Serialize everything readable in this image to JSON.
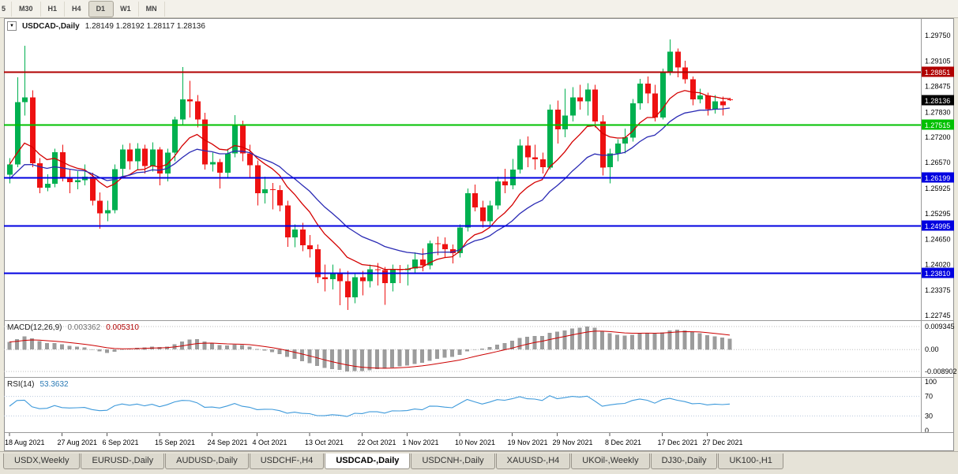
{
  "toolbar": {
    "timeframes": [
      "5",
      "M30",
      "H1",
      "H4",
      "D1",
      "W1",
      "MN"
    ],
    "active_timeframe": "D1"
  },
  "chart": {
    "collapse_icon": "▼",
    "title": "USDCAD-,Daily",
    "ohlc_display": "1.28149 1.28192 1.28117 1.28136"
  },
  "indicators": {
    "macd": {
      "title": "MACD(12,26,9)",
      "main_value": "0.003362",
      "signal_value": "0.005310",
      "axis_labels": [
        {
          "text": "0.009345",
          "value": 0.009345
        },
        {
          "text": "0.00",
          "value": 0
        },
        {
          "text": "-0.008902",
          "value": -0.008902
        }
      ]
    },
    "rsi": {
      "title": "RSI(14)",
      "value": "53.3632",
      "levels": [
        70,
        30
      ],
      "axis_labels": [
        {
          "text": "100",
          "value": 100
        },
        {
          "text": "70",
          "value": 70
        },
        {
          "text": "30",
          "value": 30
        },
        {
          "text": "0",
          "value": 0
        }
      ]
    }
  },
  "chart_data": {
    "type": "candlestick",
    "symbol": "USDCAD-",
    "timeframe": "Daily",
    "colors": {
      "up": "#00b050",
      "down": "#ee1111",
      "macd_hist": "#9c9c9c",
      "macd_signal": "#cc0000",
      "rsi": "#3e9adb"
    },
    "moving_averages": [
      {
        "period": 10,
        "method": "ema",
        "color": "#d40000",
        "seed_offset": 0
      },
      {
        "period": 20,
        "method": "ema",
        "color": "#2a2ab4",
        "seed_offset": 0.004
      }
    ],
    "hlines": [
      {
        "value": 1.28851,
        "label": "1.28851",
        "color": "#b00000"
      },
      {
        "value": 1.27515,
        "label": "1.27515",
        "color": "#00c000"
      },
      {
        "value": 1.26199,
        "label": "1.26199",
        "color": "#0000e0"
      },
      {
        "value": 1.24995,
        "label": "1.24995",
        "color": "#0000e0"
      },
      {
        "value": 1.2381,
        "label": "1.23810",
        "color": "#0000e0"
      }
    ],
    "current_price": {
      "value": 1.28136,
      "label": "1.28136",
      "bg": "#000000"
    },
    "price_axis_labels": [
      "1.29750",
      "1.29105",
      "1.28475",
      "1.27830",
      "1.27200",
      "1.26570",
      "1.25925",
      "1.25295",
      "1.24650",
      "1.24020",
      "1.23375",
      "1.22745"
    ],
    "x_labels": [
      [
        0,
        "18 Aug 2021"
      ],
      [
        7,
        "27 Aug 2021"
      ],
      [
        13,
        "6 Sep 2021"
      ],
      [
        20,
        "15 Sep 2021"
      ],
      [
        27,
        "24 Sep 2021"
      ],
      [
        33,
        "4 Oct 2021"
      ],
      [
        40,
        "13 Oct 2021"
      ],
      [
        47,
        "22 Oct 2021"
      ],
      [
        53,
        "1 Nov 2021"
      ],
      [
        60,
        "10 Nov 2021"
      ],
      [
        67,
        "19 Nov 2021"
      ],
      [
        73,
        "29 Nov 2021"
      ],
      [
        80,
        "8 Dec 2021"
      ],
      [
        87,
        "17 Dec 2021"
      ],
      [
        93,
        "27 Dec 2021"
      ]
    ],
    "candles": [
      [
        1.2627,
        1.2668,
        1.2605,
        1.2652
      ],
      [
        1.2652,
        1.287,
        1.2645,
        1.2808
      ],
      [
        1.2808,
        1.2949,
        1.2775,
        1.282
      ],
      [
        1.282,
        1.2838,
        1.2645,
        1.2655
      ],
      [
        1.2655,
        1.2668,
        1.258,
        1.2594
      ],
      [
        1.2594,
        1.2628,
        1.2585,
        1.2604
      ],
      [
        1.2604,
        1.2692,
        1.2595,
        1.2683
      ],
      [
        1.2683,
        1.2702,
        1.261,
        1.262
      ],
      [
        1.262,
        1.2642,
        1.258,
        1.2608
      ],
      [
        1.2608,
        1.2636,
        1.259,
        1.2613
      ],
      [
        1.2613,
        1.2652,
        1.26,
        1.2622
      ],
      [
        1.2622,
        1.2632,
        1.255,
        1.2562
      ],
      [
        1.2562,
        1.2582,
        1.2492,
        1.253
      ],
      [
        1.253,
        1.2562,
        1.251,
        1.2538
      ],
      [
        1.2538,
        1.2652,
        1.253,
        1.2641
      ],
      [
        1.2641,
        1.2702,
        1.262,
        1.269
      ],
      [
        1.269,
        1.2706,
        1.264,
        1.266
      ],
      [
        1.266,
        1.2706,
        1.264,
        1.2692
      ],
      [
        1.2692,
        1.2702,
        1.263,
        1.2648
      ],
      [
        1.2648,
        1.2708,
        1.2635,
        1.269
      ],
      [
        1.269,
        1.2696,
        1.26,
        1.263
      ],
      [
        1.263,
        1.2692,
        1.261,
        1.2682
      ],
      [
        1.2682,
        1.2772,
        1.266,
        1.2765
      ],
      [
        1.2765,
        1.2896,
        1.275,
        1.2815
      ],
      [
        1.2815,
        1.2862,
        1.277,
        1.281
      ],
      [
        1.281,
        1.2826,
        1.2745,
        1.2765
      ],
      [
        1.2765,
        1.2782,
        1.264,
        1.2652
      ],
      [
        1.2652,
        1.2682,
        1.2635,
        1.2658
      ],
      [
        1.2658,
        1.2666,
        1.2592,
        1.2632
      ],
      [
        1.2632,
        1.2692,
        1.262,
        1.268
      ],
      [
        1.268,
        1.2776,
        1.267,
        1.275
      ],
      [
        1.275,
        1.2762,
        1.266,
        1.268
      ],
      [
        1.268,
        1.2702,
        1.262,
        1.265
      ],
      [
        1.265,
        1.2662,
        1.255,
        1.258
      ],
      [
        1.258,
        1.2622,
        1.2555,
        1.259
      ],
      [
        1.259,
        1.2606,
        1.254,
        1.2588
      ],
      [
        1.2588,
        1.26,
        1.2535,
        1.255
      ],
      [
        1.255,
        1.2562,
        1.2446,
        1.247
      ],
      [
        1.247,
        1.2502,
        1.2445,
        1.249
      ],
      [
        1.249,
        1.2506,
        1.2435,
        1.245
      ],
      [
        1.245,
        1.2476,
        1.242,
        1.244
      ],
      [
        1.244,
        1.2452,
        1.2355,
        1.237
      ],
      [
        1.237,
        1.2402,
        1.2335,
        1.2365
      ],
      [
        1.2365,
        1.2402,
        1.234,
        1.2382
      ],
      [
        1.2382,
        1.2392,
        1.23,
        1.236
      ],
      [
        1.236,
        1.2386,
        1.2288,
        1.232
      ],
      [
        1.232,
        1.2382,
        1.2305,
        1.237
      ],
      [
        1.237,
        1.2386,
        1.2325,
        1.236
      ],
      [
        1.236,
        1.2402,
        1.2345,
        1.239
      ],
      [
        1.239,
        1.2406,
        1.235,
        1.2388
      ],
      [
        1.2388,
        1.2396,
        1.2301,
        1.2355
      ],
      [
        1.2355,
        1.2402,
        1.2335,
        1.239
      ],
      [
        1.239,
        1.2401,
        1.2355,
        1.2388
      ],
      [
        1.2388,
        1.2402,
        1.235,
        1.2392
      ],
      [
        1.2392,
        1.2432,
        1.238,
        1.2415
      ],
      [
        1.2415,
        1.2442,
        1.2385,
        1.24
      ],
      [
        1.24,
        1.2462,
        1.239,
        1.2455
      ],
      [
        1.2455,
        1.2472,
        1.2425,
        1.2453
      ],
      [
        1.2453,
        1.247,
        1.242,
        1.244
      ],
      [
        1.244,
        1.2452,
        1.2405,
        1.243
      ],
      [
        1.243,
        1.2502,
        1.242,
        1.2495
      ],
      [
        1.2495,
        1.2592,
        1.2485,
        1.258
      ],
      [
        1.258,
        1.2602,
        1.2535,
        1.2545
      ],
      [
        1.2545,
        1.2562,
        1.2495,
        1.251
      ],
      [
        1.251,
        1.2562,
        1.25,
        1.255
      ],
      [
        1.255,
        1.2622,
        1.254,
        1.261
      ],
      [
        1.261,
        1.2642,
        1.258,
        1.26
      ],
      [
        1.26,
        1.2666,
        1.259,
        1.264
      ],
      [
        1.264,
        1.2716,
        1.263,
        1.27
      ],
      [
        1.27,
        1.2722,
        1.2645,
        1.267
      ],
      [
        1.267,
        1.2702,
        1.264,
        1.2665
      ],
      [
        1.2665,
        1.2682,
        1.263,
        1.2645
      ],
      [
        1.2645,
        1.2802,
        1.264,
        1.279
      ],
      [
        1.279,
        1.2812,
        1.2705,
        1.274
      ],
      [
        1.274,
        1.2842,
        1.272,
        1.2775
      ],
      [
        1.2775,
        1.2846,
        1.276,
        1.282
      ],
      [
        1.282,
        1.2852,
        1.279,
        1.281
      ],
      [
        1.281,
        1.2856,
        1.2775,
        1.284
      ],
      [
        1.284,
        1.2852,
        1.2745,
        1.276
      ],
      [
        1.276,
        1.2776,
        1.2625,
        1.2645
      ],
      [
        1.2645,
        1.2692,
        1.2605,
        1.268
      ],
      [
        1.268,
        1.2716,
        1.266,
        1.2705
      ],
      [
        1.2705,
        1.2742,
        1.268,
        1.272
      ],
      [
        1.272,
        1.2816,
        1.271,
        1.2805
      ],
      [
        1.2805,
        1.2866,
        1.279,
        1.2855
      ],
      [
        1.2855,
        1.2872,
        1.2805,
        1.283
      ],
      [
        1.283,
        1.2852,
        1.276,
        1.277
      ],
      [
        1.277,
        1.2892,
        1.2765,
        1.2885
      ],
      [
        1.2885,
        1.2965,
        1.2875,
        1.2935
      ],
      [
        1.2935,
        1.2942,
        1.287,
        1.2895
      ],
      [
        1.2895,
        1.2912,
        1.2855,
        1.2865
      ],
      [
        1.2865,
        1.2872,
        1.28,
        1.2815
      ],
      [
        1.2815,
        1.2842,
        1.2805,
        1.2825
      ],
      [
        1.2825,
        1.2832,
        1.2775,
        1.279
      ],
      [
        1.279,
        1.2826,
        1.278,
        1.281
      ],
      [
        1.281,
        1.2822,
        1.2775,
        1.28
      ],
      [
        1.28149,
        1.28192,
        1.28117,
        1.28136
      ]
    ]
  },
  "tabs": [
    {
      "label": "USDX,Weekly",
      "active": false
    },
    {
      "label": "EURUSD-,Daily",
      "active": false
    },
    {
      "label": "AUDUSD-,Daily",
      "active": false
    },
    {
      "label": "USDCHF-,H4",
      "active": false
    },
    {
      "label": "USDCAD-,Daily",
      "active": true
    },
    {
      "label": "USDCNH-,Daily",
      "active": false
    },
    {
      "label": "XAUUSD-,H4",
      "active": false
    },
    {
      "label": "UKOil-,Weekly",
      "active": false
    },
    {
      "label": "DJ30-,Daily",
      "active": false
    },
    {
      "label": "UK100-,H1",
      "active": false
    }
  ]
}
